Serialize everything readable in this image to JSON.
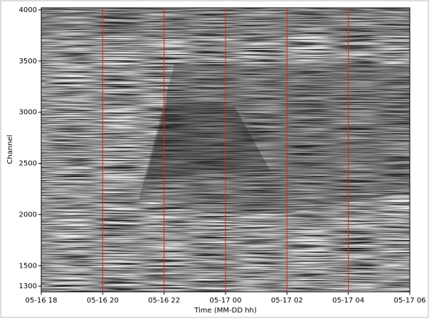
{
  "chart_data": {
    "type": "heatmap",
    "xlabel": "Time (MM-DD hh)",
    "ylabel": "Channel",
    "categories": [
      "05-16 18",
      "05-16 20",
      "05-16 22",
      "05-17 00",
      "05-17 02",
      "05-17 04",
      "05-17 06"
    ],
    "ylim": [
      1245,
      4020
    ],
    "yticks": [
      1300,
      1500,
      2000,
      2500,
      3000,
      3500,
      4000
    ],
    "xgrid": true,
    "grid_color": "#d62728"
  }
}
